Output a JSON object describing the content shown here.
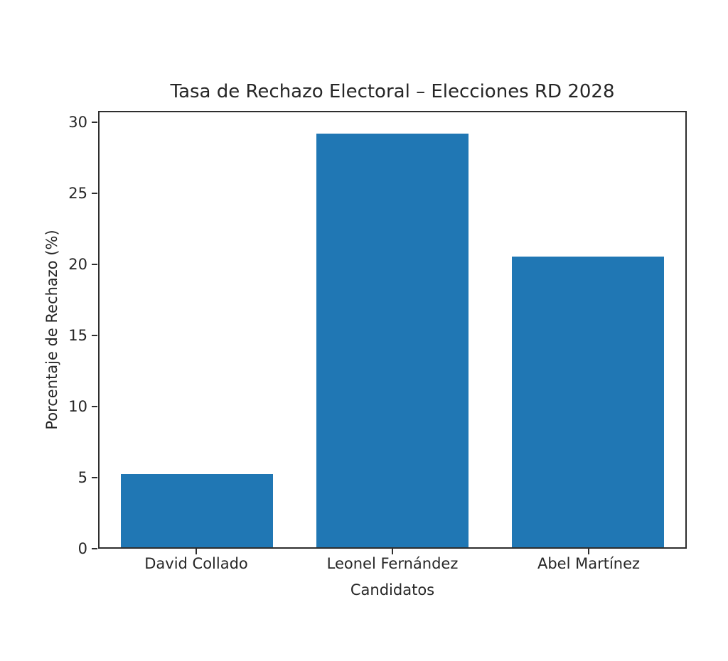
{
  "chart_data": {
    "type": "bar",
    "title": "Tasa de Rechazo Electoral – Elecciones RD 2028",
    "xlabel": "Candidatos",
    "ylabel": "Porcentaje de Rechazo (%)",
    "categories": [
      "David Collado",
      "Leonel Fernández",
      "Abel Martínez"
    ],
    "values": [
      5.2,
      29.3,
      20.6
    ],
    "yticks": [
      0,
      5,
      10,
      15,
      20,
      25,
      30
    ],
    "ylim": [
      0,
      30.8
    ],
    "bar_color": "#2077b4",
    "spine_color": "#2e2e2e",
    "text_color": "#262626",
    "background": "#ffffff",
    "grid": false,
    "legend": null
  }
}
